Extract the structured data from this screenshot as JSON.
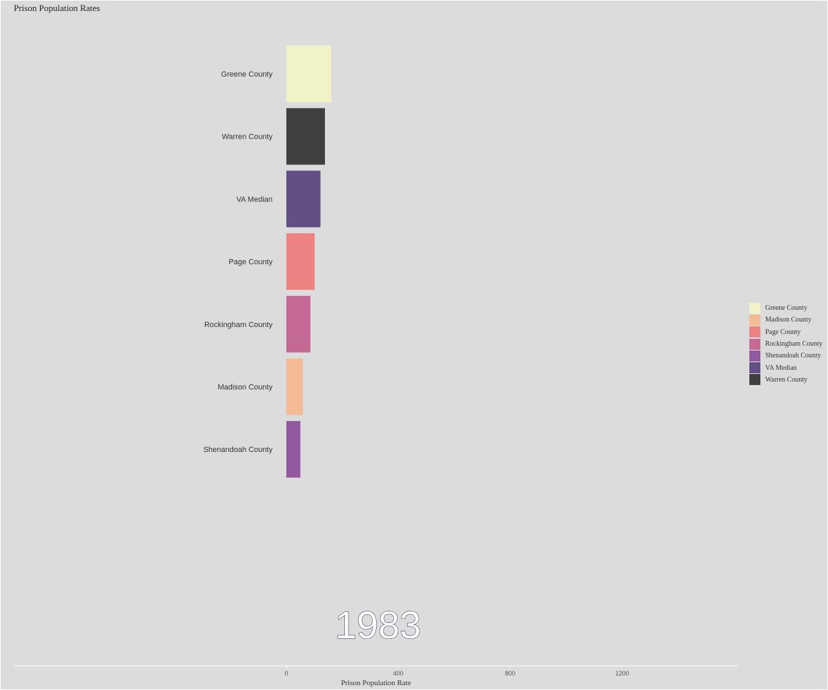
{
  "chart_data": {
    "type": "bar",
    "orientation": "horizontal",
    "title": "Prison Population Rates",
    "xlabel": "Prison Population Rate",
    "ylabel": "",
    "xlim": [
      0,
      1600
    ],
    "x_ticks": [
      0,
      400,
      800,
      1200
    ],
    "year": "1983",
    "grid": false,
    "legend_position": "right",
    "bars": [
      {
        "category": "Greene County",
        "value": 160,
        "color": "#F2F2C8"
      },
      {
        "category": "Warren County",
        "value": 138,
        "color": "#404040"
      },
      {
        "category": "VA Median",
        "value": 122,
        "color": "#634E85"
      },
      {
        "category": "Page County",
        "value": 101,
        "color": "#EC8282"
      },
      {
        "category": "Rockingham County",
        "value": 86,
        "color": "#C46895"
      },
      {
        "category": "Madison County",
        "value": 59,
        "color": "#F4BB97"
      },
      {
        "category": "Shenandoah County",
        "value": 50,
        "color": "#93599E"
      }
    ],
    "legend": [
      {
        "label": "Greene County",
        "color": "#F2F2C8"
      },
      {
        "label": "Madison County",
        "color": "#F4BB97"
      },
      {
        "label": "Page County",
        "color": "#EC8282"
      },
      {
        "label": "Rockingham County",
        "color": "#C46895"
      },
      {
        "label": "Shenandoah County",
        "color": "#93599E"
      },
      {
        "label": "VA Median",
        "color": "#634E85"
      },
      {
        "label": "Warren County",
        "color": "#404040"
      }
    ]
  }
}
